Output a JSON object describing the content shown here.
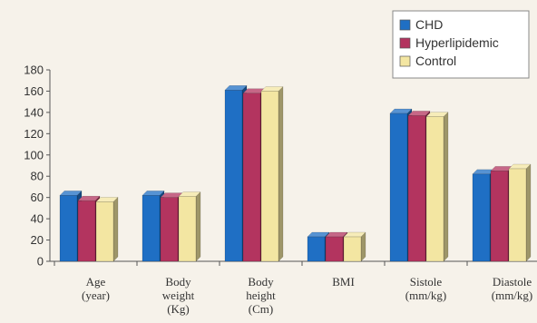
{
  "colors": {
    "background": "#f6f2ea",
    "axis": "#555555",
    "legend_box_bg": "#ffffff",
    "legend_box_border": "#888888"
  },
  "chart_data": {
    "type": "bar",
    "title": "",
    "xlabel": "",
    "ylabel": "",
    "ylim": [
      0,
      180
    ],
    "yticks": [
      0,
      20,
      40,
      60,
      80,
      100,
      120,
      140,
      160,
      180
    ],
    "categories": [
      [
        "Age",
        "(year)"
      ],
      [
        "Body",
        "weight",
        "(Kg)"
      ],
      [
        "Body",
        "height",
        "(Cm)"
      ],
      [
        "BMI"
      ],
      [
        "Sistole",
        "(mm/kg)"
      ],
      [
        "Diastole",
        "(mm/kg)"
      ]
    ],
    "series": [
      {
        "name": "CHD",
        "color": "#1f6fc4",
        "values": [
          62,
          62,
          161,
          23,
          139,
          82
        ]
      },
      {
        "name": "Hyperlipidemic",
        "color": "#b3345f",
        "values": [
          57,
          60,
          158,
          23,
          137,
          85
        ]
      },
      {
        "name": "Control",
        "color": "#f3e6a2",
        "values": [
          56,
          61,
          160,
          23,
          136,
          87
        ]
      }
    ],
    "legend": "top-right",
    "grid": false,
    "style": "3d-bars"
  }
}
